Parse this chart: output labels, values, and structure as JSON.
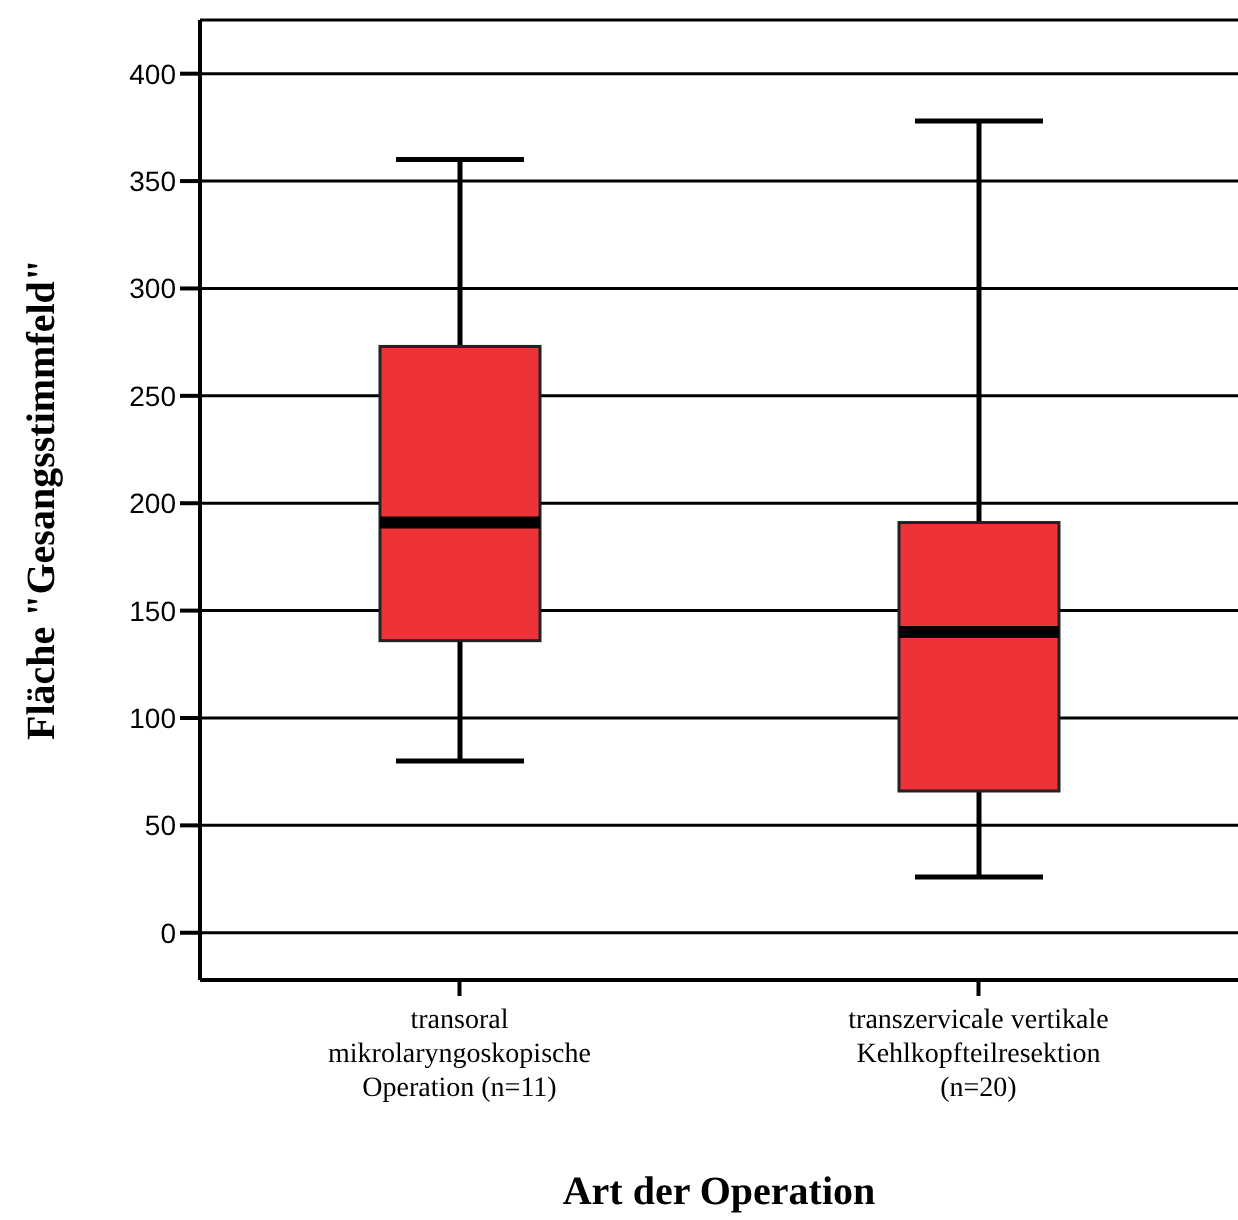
{
  "chart_data": {
    "type": "box",
    "xlabel": "Art der Operation",
    "ylabel": "Fläche \"Gesangsstimmfeld\"",
    "categories": [
      "transoral mikrolaryngoskopische Operation (n=11)",
      "transzervicale vertikale Kehlkopfteilresektion (n=20)"
    ],
    "boxes": [
      {
        "low": 80,
        "q1": 136,
        "median": 191,
        "q3": 273,
        "high": 360
      },
      {
        "low": 26,
        "q1": 66,
        "median": 140,
        "q3": 191,
        "high": 378
      }
    ],
    "color": "#ee3338",
    "ylim": [
      -22,
      425
    ],
    "yticks": [
      0,
      50,
      100,
      150,
      200,
      250,
      300,
      350,
      400
    ],
    "grid": "y"
  }
}
